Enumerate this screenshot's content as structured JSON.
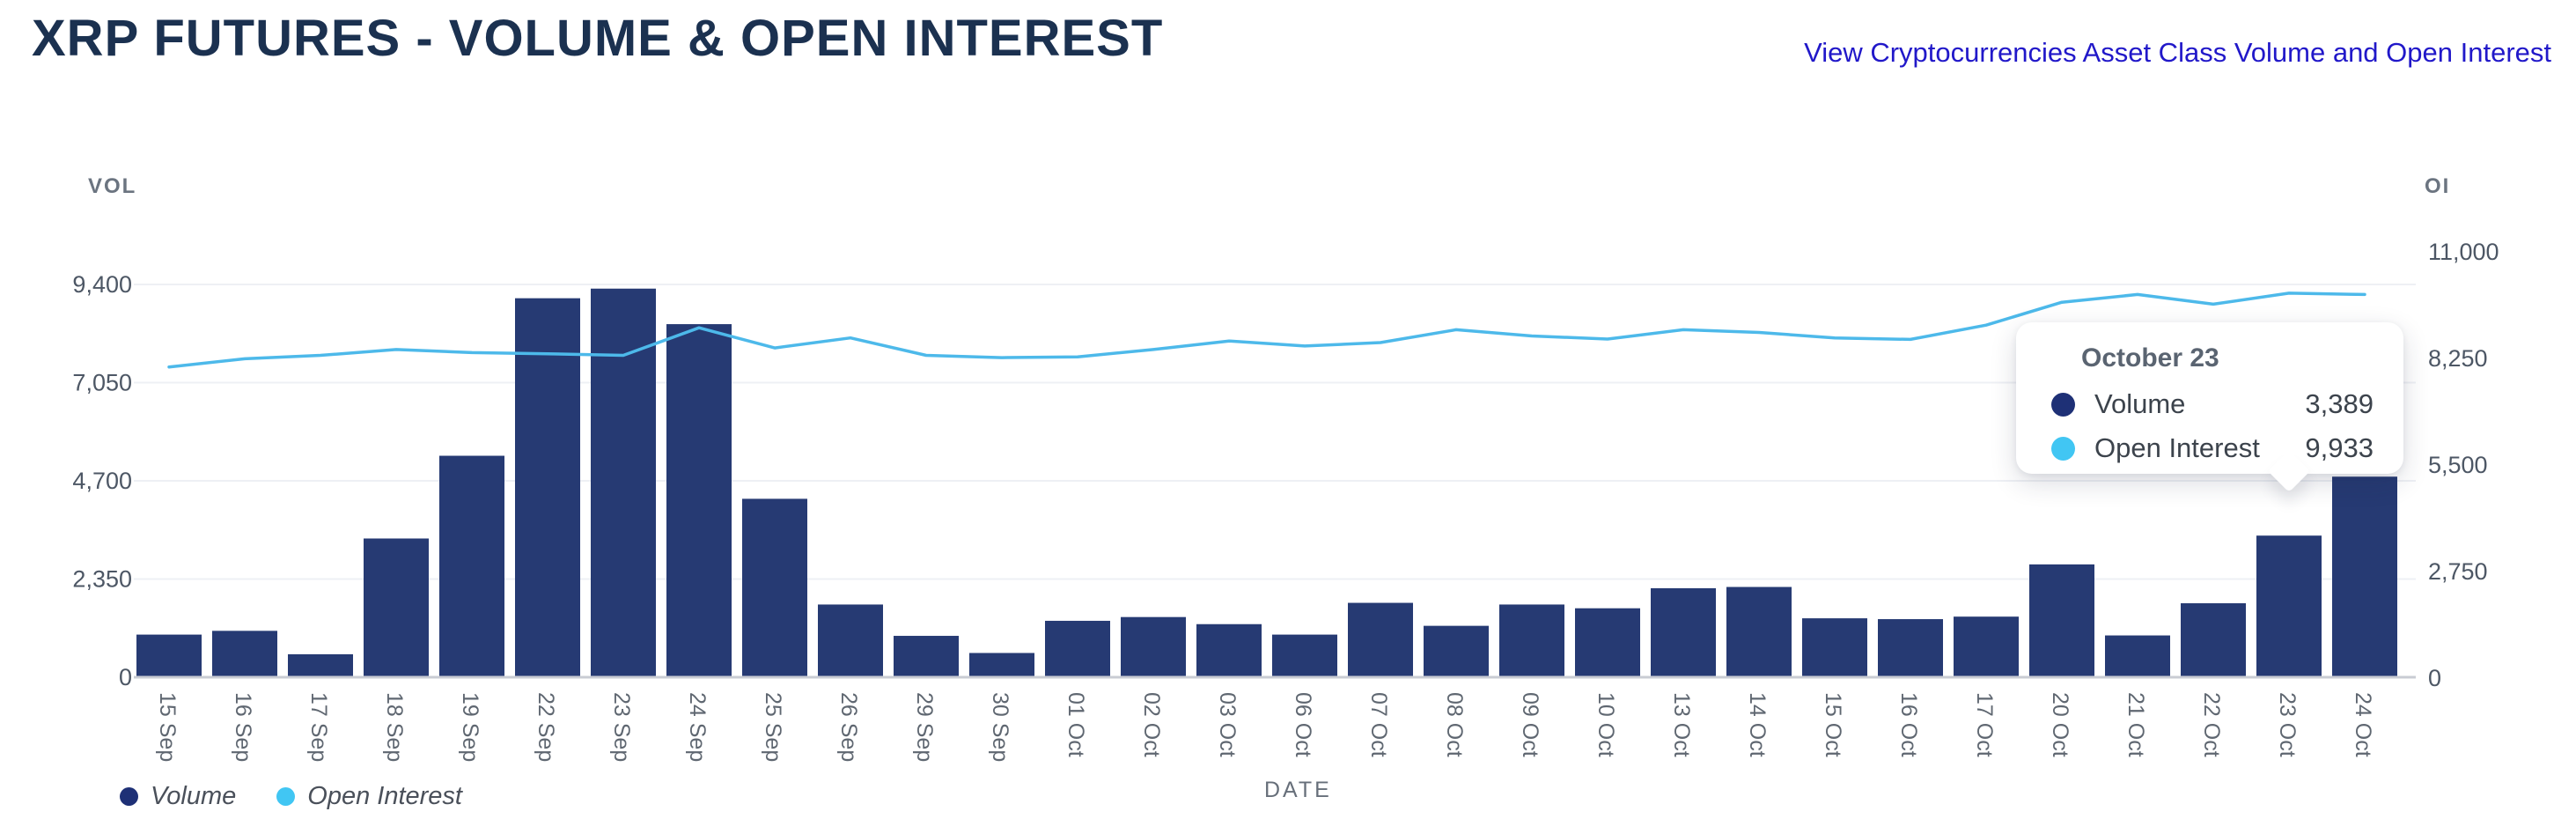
{
  "header": {
    "title": "XRP FUTURES - VOLUME & OPEN INTEREST",
    "link": "View Cryptocurrencies Asset Class Volume and Open Interest"
  },
  "legend": {
    "volume_label": "Volume",
    "open_interest_label": "Open Interest"
  },
  "x_axis_title": "DATE",
  "tooltip": {
    "title": "October 23",
    "volume_label": "Volume",
    "volume_value": "3,389",
    "oi_label": "Open Interest",
    "oi_value": "9,933"
  },
  "colors": {
    "bar": "#263a73",
    "line": "#4db9ea",
    "legend_volume_dot": "#1e3076",
    "legend_oi_dot": "#41c6f3",
    "title_text": "#1b3150",
    "link_text": "#2118c9",
    "gridline": "#eef0f4",
    "axis_line": "#c9ccd3"
  },
  "chart_data": {
    "type": "bar+line combo",
    "title": "XRP FUTURES - VOLUME & OPEN INTEREST",
    "xlabel": "DATE",
    "grid": true,
    "legend_position": "bottom-left",
    "categories": [
      "15 Sep",
      "16 Sep",
      "17 Sep",
      "18 Sep",
      "19 Sep",
      "22 Sep",
      "23 Sep",
      "24 Sep",
      "25 Sep",
      "26 Sep",
      "29 Sep",
      "30 Sep",
      "01 Oct",
      "02 Oct",
      "03 Oct",
      "06 Oct",
      "07 Oct",
      "08 Oct",
      "09 Oct",
      "10 Oct",
      "13 Oct",
      "14 Oct",
      "15 Oct",
      "16 Oct",
      "17 Oct",
      "20 Oct",
      "21 Oct",
      "22 Oct",
      "23 Oct",
      "24 Oct"
    ],
    "series": [
      {
        "name": "Volume",
        "type": "bar",
        "axis": "left",
        "color": "#263a73",
        "values": [
          1020,
          1110,
          550,
          3320,
          5300,
          9070,
          9300,
          8450,
          4270,
          1740,
          990,
          580,
          1350,
          1440,
          1270,
          1020,
          1780,
          1230,
          1740,
          1650,
          2130,
          2160,
          1410,
          1390,
          1450,
          2700,
          1000,
          1770,
          3389,
          4800
        ]
      },
      {
        "name": "Open Interest",
        "type": "line",
        "axis": "right",
        "color": "#4db9ea",
        "values": [
          8030,
          8240,
          8330,
          8480,
          8400,
          8370,
          8330,
          9040,
          8520,
          8780,
          8330,
          8270,
          8290,
          8480,
          8700,
          8570,
          8660,
          8990,
          8830,
          8750,
          8990,
          8920,
          8780,
          8740,
          9110,
          9700,
          9900,
          9650,
          9933,
          9900
        ]
      }
    ],
    "left_axis": {
      "title": "VOL",
      "ticks": [
        0,
        2350,
        4700,
        7050,
        9400
      ],
      "range": [
        0,
        9400
      ]
    },
    "right_axis": {
      "title": "OI",
      "ticks": [
        0,
        2750,
        5500,
        8250,
        11000
      ],
      "range": [
        0,
        11000
      ]
    },
    "highlight": {
      "category": "23 Oct",
      "tooltip_title": "October 23",
      "volume": 3389,
      "open_interest": 9933
    }
  }
}
